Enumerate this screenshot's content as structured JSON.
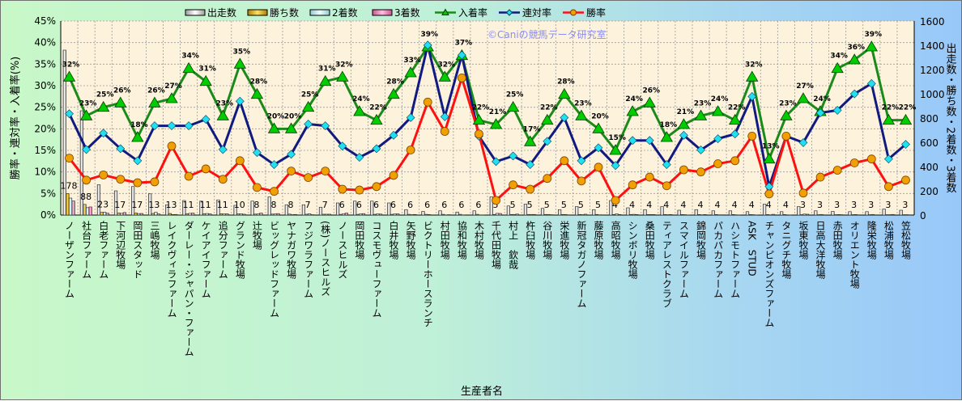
{
  "chart_data": {
    "type": "bar+line",
    "title": "",
    "watermark": "©Caniの競馬データ研究室",
    "xlabel": "生産者名",
    "ylabel_left": "勝率・連対率・入着率(%)",
    "ylabel_right": "出走数・勝ち数・2着数・3着数",
    "ylim_left": [
      0,
      45
    ],
    "ylim_right": [
      0,
      1600
    ],
    "left_ticks": [
      "0%",
      "5%",
      "10%",
      "15%",
      "20%",
      "25%",
      "30%",
      "35%",
      "40%",
      "45%"
    ],
    "right_ticks": [
      "0",
      "200",
      "400",
      "600",
      "800",
      "1000",
      "1200",
      "1400",
      "1600"
    ],
    "grid": true,
    "legend_position": "top",
    "categories": [
      "ノーザンファーム",
      "社台ファーム",
      "白老ファーム",
      "下河辺牧場",
      "岡田スタッド",
      "三嶋牧場",
      "レイクヴィラファーム",
      "ダーレー・ジャパン・ファーム",
      "ケイアイファーム",
      "追分ファーム",
      "グランド牧場",
      "辻牧場",
      "ビッグレッドファーム",
      "ヤナガワ牧場",
      "フジワラファーム",
      "(株)ノースヒルズ",
      "ノースヒルズ",
      "岡田牧場",
      "コスモヴューファーム",
      "白井牧場",
      "矢野牧場",
      "ビクトリーホースランチ",
      "村田牧場",
      "協和牧場",
      "木村牧場",
      "千代田牧場",
      "村上　欽哉",
      "杵臼牧場",
      "谷川牧場",
      "栄進牧場",
      "新冠タガノファーム",
      "藤原牧場",
      "高昭牧場",
      "シンボリ牧場",
      "桑田牧場",
      "ティアレストクラブ",
      "スマイルファーム",
      "錦岡牧場",
      "パカパカファーム",
      "ハシモトファーム",
      "ASK　STUD",
      "チャンピオンズファーム",
      "タニグチ牧場",
      "坂東牧場",
      "日高大洋牧場",
      "赤田牧場",
      "オリエント牧場",
      "隆栄牧場",
      "松浦牧場",
      "笠松牧場"
    ],
    "bar_series": [
      {
        "name": "出走数",
        "color": "#ffffff",
        "values": [
          1360,
          860,
          250,
          200,
          235,
          175,
          85,
          120,
          115,
          125,
          80,
          115,
          150,
          85,
          85,
          65,
          100,
          115,
          115,
          100,
          45,
          30,
          35,
          25,
          35,
          150,
          75,
          90,
          55,
          45,
          70,
          45,
          120,
          60,
          45,
          70,
          40,
          45,
          35,
          35,
          28,
          90,
          28,
          70,
          35,
          30,
          28,
          28,
          50,
          40
        ]
      },
      {
        "name": "勝ち数",
        "color": "#e0b000",
        "values": [
          178,
          88,
          23,
          17,
          17,
          13,
          13,
          11,
          11,
          11,
          10,
          8,
          8,
          8,
          7,
          7,
          6,
          6,
          6,
          6,
          6,
          6,
          6,
          6,
          6,
          5,
          5,
          5,
          5,
          5,
          5,
          5,
          4,
          4,
          4,
          4,
          4,
          4,
          4,
          4,
          4,
          4,
          4,
          3,
          3,
          3,
          3,
          3,
          3,
          3
        ]
      },
      {
        "name": "2着数",
        "color": "#c8f0f4",
        "values": [
          140,
          61,
          24,
          14,
          12,
          23,
          4,
          14,
          13,
          9,
          11,
          9,
          9,
          3,
          11,
          7,
          10,
          9,
          10,
          9,
          3,
          4,
          1,
          1,
          1,
          14,
          5,
          5,
          5,
          5,
          3,
          2,
          10,
          6,
          4,
          3,
          3,
          2,
          2,
          2,
          3,
          2,
          0,
          8,
          5,
          4,
          4,
          5,
          3,
          3
        ]
      },
      {
        "name": "3着数",
        "color": "#e880b0",
        "values": [
          116,
          67,
          15,
          21,
          13,
          9,
          5,
          16,
          10,
          10,
          7,
          16,
          12,
          5,
          3,
          7,
          16,
          12,
          8,
          10,
          5,
          0,
          3,
          0,
          1,
          13,
          8,
          5,
          3,
          2,
          7,
          2,
          4,
          4,
          4,
          4,
          1,
          4,
          2,
          1,
          1,
          6,
          1,
          7,
          0,
          3,
          2,
          2,
          5,
          2
        ]
      }
    ],
    "win_count_labels": [
      "178",
      "88",
      "23",
      "17",
      "17",
      "13",
      "13",
      "11",
      "11",
      "11",
      "10",
      "8",
      "8",
      "8",
      "7",
      "7",
      "6",
      "6",
      "6",
      "6",
      "6",
      "6",
      "6",
      "6",
      "6",
      "5",
      "5",
      "5",
      "5",
      "5",
      "5",
      "5",
      "4",
      "4",
      "4",
      "4",
      "4",
      "4",
      "4",
      "4",
      "4",
      "4",
      "4",
      "3",
      "3",
      "3",
      "3",
      "3",
      "3",
      "3"
    ],
    "line_series": [
      {
        "name": "入着率",
        "color": "#1a8a1a",
        "marker": "triangle",
        "marker_color": "#00cc00",
        "values": [
          32,
          23,
          25,
          26,
          18,
          26,
          27,
          34,
          31,
          23,
          35,
          28,
          20,
          20,
          25,
          31,
          32,
          24,
          22,
          28,
          33,
          39,
          32,
          37,
          22,
          21,
          25,
          17,
          22,
          28,
          23,
          20,
          15,
          24,
          26,
          18,
          21,
          23,
          24,
          22,
          32,
          13,
          23,
          27,
          24,
          34,
          36,
          39,
          22,
          22
        ],
        "labels": [
          "32%",
          "23%",
          "25%",
          "26%",
          "18%",
          "26%",
          "27%",
          "34%",
          "31%",
          "23%",
          "35%",
          "28%",
          "20%",
          "20%",
          "25%",
          "31%",
          "32%",
          "24%",
          "22%",
          "28%",
          "33%",
          "39%",
          "32%",
          "37%",
          "22%",
          "21%",
          "25%",
          "17%",
          "22%",
          "28%",
          "23%",
          "20%",
          "15%",
          "24%",
          "26%",
          "18%",
          "21%",
          "23%",
          "24%",
          "22%",
          "32%",
          "13%",
          "23%",
          "27%",
          "24%",
          "34%",
          "36%",
          "39%",
          "22%",
          "22%"
        ]
      },
      {
        "name": "連対率",
        "color": "#101a80",
        "marker": "diamond",
        "marker_color": "#20e0f0",
        "values": [
          23.5,
          15.2,
          19.0,
          15.4,
          12.6,
          20.7,
          20.7,
          20.7,
          22.2,
          15.2,
          26.4,
          14.5,
          11.7,
          14.1,
          21.1,
          20.7,
          16.0,
          13.4,
          15.4,
          18.5,
          22.6,
          39.4,
          22.8,
          37.1,
          18.3,
          12.4,
          13.7,
          11.7,
          17.1,
          22.6,
          12.6,
          15.6,
          11.5,
          17.3,
          17.3,
          11.7,
          18.5,
          15.1,
          17.7,
          18.8,
          27.5,
          6.6,
          18.3,
          16.8,
          23.7,
          24.3,
          28.1,
          30.5,
          13.0,
          16.4
        ]
      },
      {
        "name": "勝率",
        "color": "#ff1010",
        "marker": "circle",
        "marker_color": "#f0a000",
        "values": [
          13.2,
          8.1,
          9.3,
          8.3,
          7.5,
          7.7,
          16.0,
          9.0,
          10.7,
          8.3,
          12.6,
          6.4,
          5.5,
          10.2,
          8.7,
          10.2,
          6.0,
          5.8,
          6.6,
          9.2,
          15.1,
          26.2,
          19.4,
          31.8,
          18.8,
          3.4,
          7.0,
          6.0,
          8.5,
          12.6,
          7.9,
          11.1,
          3.4,
          7.0,
          8.8,
          6.8,
          10.5,
          10.0,
          11.9,
          12.6,
          18.3,
          4.9,
          18.3,
          5.1,
          8.8,
          10.4,
          12.1,
          13.0,
          6.6,
          8.1
        ]
      }
    ]
  }
}
